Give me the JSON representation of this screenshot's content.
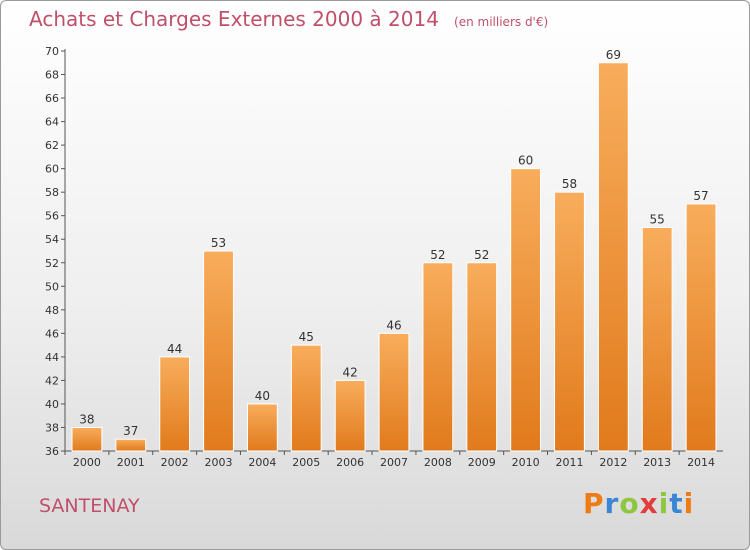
{
  "header": {
    "title": "Achats et Charges Externes 2000 à 2014",
    "unit": "(en milliers d'€)"
  },
  "footer": {
    "commune": "SANTENAY",
    "brand": "Proxiti"
  },
  "colors": {
    "title": "#c0506a",
    "bar_light": "#f8ad5c",
    "bar_dark": "#e17a1c"
  },
  "chart_data": {
    "type": "bar",
    "title": "Achats et Charges Externes 2000 à 2014",
    "subtitle": "(en milliers d'€)",
    "xlabel": "",
    "ylabel": "",
    "categories": [
      "2000",
      "2001",
      "2002",
      "2003",
      "2004",
      "2005",
      "2006",
      "2007",
      "2008",
      "2009",
      "2010",
      "2011",
      "2012",
      "2013",
      "2014"
    ],
    "values": [
      38,
      37,
      44,
      53,
      40,
      45,
      42,
      46,
      52,
      52,
      60,
      58,
      69,
      55,
      57
    ],
    "ylim": [
      36,
      70
    ],
    "yticks": [
      36,
      38,
      40,
      42,
      44,
      46,
      48,
      50,
      52,
      54,
      56,
      58,
      60,
      62,
      64,
      66,
      68,
      70
    ],
    "grid": false,
    "data_labels": true,
    "legend": "none"
  }
}
